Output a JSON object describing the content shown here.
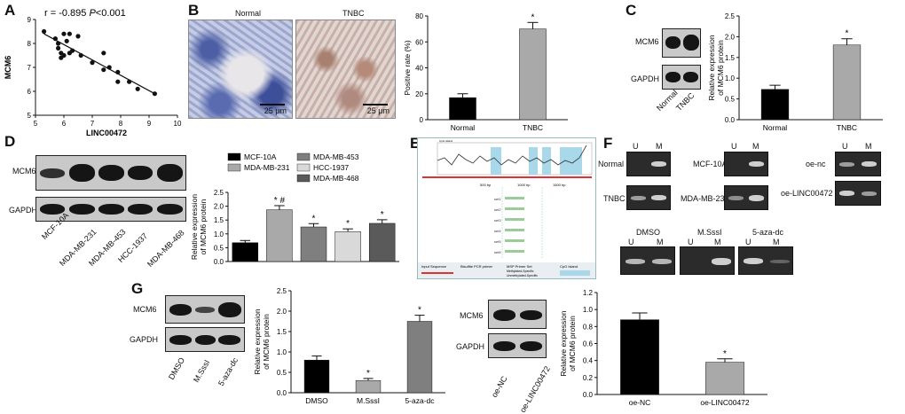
{
  "panels": {
    "A": {
      "label": "A"
    },
    "B": {
      "label": "B",
      "img_labels": [
        "Normal",
        "TNBC"
      ],
      "scalebar": "25 μm"
    },
    "C": {
      "label": "C",
      "blot_rows": [
        "MCM6",
        "GAPDH"
      ],
      "blot_cols": [
        "Normal",
        "TNBC"
      ]
    },
    "D": {
      "label": "D",
      "blot_rows": [
        "MCM6",
        "GAPDH"
      ],
      "blot_cols": [
        "MCF-10A",
        "MDA-MB-231",
        "MDA-MB-453",
        "HCC-1937",
        "MDA-MB-468"
      ]
    },
    "E": {
      "label": "E",
      "title": "CpG Island",
      "ticks": [
        "500 bp",
        "1000 bp",
        "1500 bp"
      ],
      "primers": [
        "set1",
        "set2",
        "set3",
        "set4",
        "set5",
        "set6"
      ],
      "legend_left": "Input Sequence",
      "legend_mid": "Bisulfite PCR primer",
      "legend_mid2": "MSP Primer Set",
      "legend_right": "CpG Island",
      "legend_m": "Methylated-Specific",
      "legend_u": "Unmethylated-Specific"
    },
    "F": {
      "label": "F",
      "lane_u": "U",
      "lane_m": "M",
      "gel_rows": [
        "Normal",
        "TNBC",
        "MCF-10A",
        "MDA-MB-231",
        "oe-nc",
        "oe-LINC00472"
      ],
      "bottom_labels": [
        "DMSO",
        "M.SssI",
        "5-aza-dc"
      ]
    },
    "G": {
      "label": "G",
      "blot_rows": [
        "MCM6",
        "GAPDH"
      ],
      "blot_cols": [
        "DMSO",
        "M.SssI",
        "5-aza-dc"
      ],
      "blot2_cols": [
        "oe-NC",
        "oe-LINC00472"
      ]
    }
  },
  "chart_data": [
    {
      "id": "A",
      "type": "scatter",
      "xlabel": "LINC00472",
      "ylabel": "MCM6",
      "annotation_r": "r = -0.895",
      "annotation_p": "P<0.001",
      "xlim": [
        5,
        10
      ],
      "ylim": [
        5,
        9
      ],
      "xticks": [
        5,
        6,
        7,
        8,
        9,
        10
      ],
      "yticks": [
        5,
        6,
        7,
        8,
        9
      ],
      "x": [
        5.3,
        5.7,
        5.8,
        5.9,
        6.0,
        6.1,
        6.2,
        6.3,
        6.5,
        5.8,
        6.0,
        6.2,
        5.9,
        6.6,
        7.0,
        7.4,
        7.6,
        7.4,
        7.9,
        8.3,
        8.6,
        9.2,
        7.9
      ],
      "y": [
        8.5,
        8.2,
        8.0,
        7.6,
        8.4,
        8.1,
        8.4,
        7.7,
        8.3,
        7.8,
        7.5,
        7.6,
        7.4,
        7.5,
        7.2,
        7.6,
        7.0,
        6.9,
        6.8,
        6.4,
        6.1,
        5.9,
        6.4
      ],
      "fit": [
        [
          5.3,
          8.4
        ],
        [
          9.2,
          5.9
        ]
      ]
    },
    {
      "id": "B",
      "type": "bar",
      "categories": [
        "Normal",
        "TNBC"
      ],
      "values": [
        17,
        70
      ],
      "errors": [
        3,
        5
      ],
      "ylabel": "Positive rate (%)",
      "ylim": [
        0,
        80
      ],
      "yticks": [
        0,
        20,
        40,
        60,
        80
      ],
      "annotations": [
        "",
        "*"
      ],
      "colors": [
        "#000000",
        "#a9a9a9"
      ]
    },
    {
      "id": "C",
      "type": "bar",
      "categories": [
        "Normal",
        "TNBC"
      ],
      "values": [
        0.73,
        1.8
      ],
      "errors": [
        0.1,
        0.15
      ],
      "ylabel": "Relative expression of MCM6 protein",
      "ylim": [
        0,
        2.5
      ],
      "yticks": [
        0.0,
        0.5,
        1.0,
        1.5,
        2.0,
        2.5
      ],
      "annotations": [
        "",
        "*"
      ],
      "colors": [
        "#000000",
        "#a9a9a9"
      ]
    },
    {
      "id": "D",
      "type": "bar",
      "categories": [
        "MCF-10A",
        "MDA-MB-231",
        "MDA-MB-453",
        "HCC-1937",
        "MDA-MB-468"
      ],
      "values": [
        0.68,
        1.87,
        1.25,
        1.08,
        1.38
      ],
      "errors": [
        0.08,
        0.15,
        0.12,
        0.1,
        0.13
      ],
      "ylabel": "Relative expression of MCM6 protein",
      "ylim": [
        0,
        2.5
      ],
      "yticks": [
        0.0,
        0.5,
        1.0,
        1.5,
        2.0,
        2.5
      ],
      "annotations": [
        "",
        "* #",
        "*",
        "*",
        "*"
      ],
      "colors": [
        "#000000",
        "#a9a9a9",
        "#7f7f7f",
        "#d9d9d9",
        "#5a5a5a"
      ],
      "legend": [
        "MCF-10A",
        "MDA-MB-231",
        "MDA-MB-453",
        "HCC-1937",
        "MDA-MB-468"
      ]
    },
    {
      "id": "G1",
      "type": "bar",
      "categories": [
        "DMSO",
        "M.SssI",
        "5-aza-dc"
      ],
      "values": [
        0.8,
        0.3,
        1.75
      ],
      "errors": [
        0.1,
        0.05,
        0.15
      ],
      "ylabel": "Relative expression of MCM6 protein",
      "ylim": [
        0,
        2.5
      ],
      "yticks": [
        0.0,
        0.5,
        1.0,
        1.5,
        2.0,
        2.5
      ],
      "annotations": [
        "",
        "*",
        "*"
      ],
      "colors": [
        "#000000",
        "#a9a9a9",
        "#7f7f7f"
      ]
    },
    {
      "id": "G2",
      "type": "bar",
      "categories": [
        "oe-NC",
        "oe-LINC00472"
      ],
      "values": [
        0.88,
        0.38
      ],
      "errors": [
        0.08,
        0.04
      ],
      "ylabel": "Relative expression of MCM6 protein",
      "ylim": [
        0,
        1.2
      ],
      "yticks": [
        0.0,
        0.2,
        0.4,
        0.6,
        0.8,
        1.0,
        1.2
      ],
      "annotations": [
        "",
        "*"
      ],
      "colors": [
        "#000000",
        "#a9a9a9"
      ]
    }
  ]
}
